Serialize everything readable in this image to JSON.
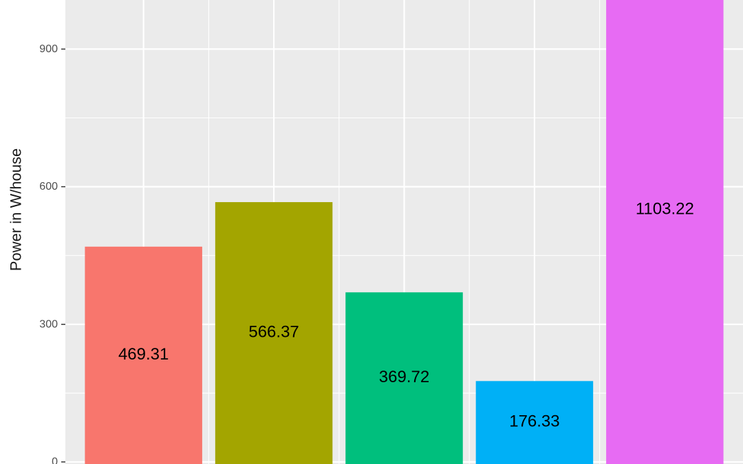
{
  "chart_data": {
    "type": "bar",
    "title": "",
    "xlabel": "",
    "ylabel": "Power in W/house",
    "ylim": [
      0,
      1007
    ],
    "yticks": [
      0,
      300,
      600,
      900
    ],
    "grid": true,
    "legend": "none",
    "values": [
      469.31,
      566.37,
      369.72,
      176.33,
      1103.22
    ],
    "labels": [
      "469.31",
      "566.37",
      "369.72",
      "176.33",
      "1103.22"
    ],
    "colors": [
      "#F8766D",
      "#A3A500",
      "#00BF7D",
      "#00B0F6",
      "#E76BF3"
    ],
    "panel_background": "#EBEBEB",
    "gridline_color": "#FFFFFF"
  }
}
